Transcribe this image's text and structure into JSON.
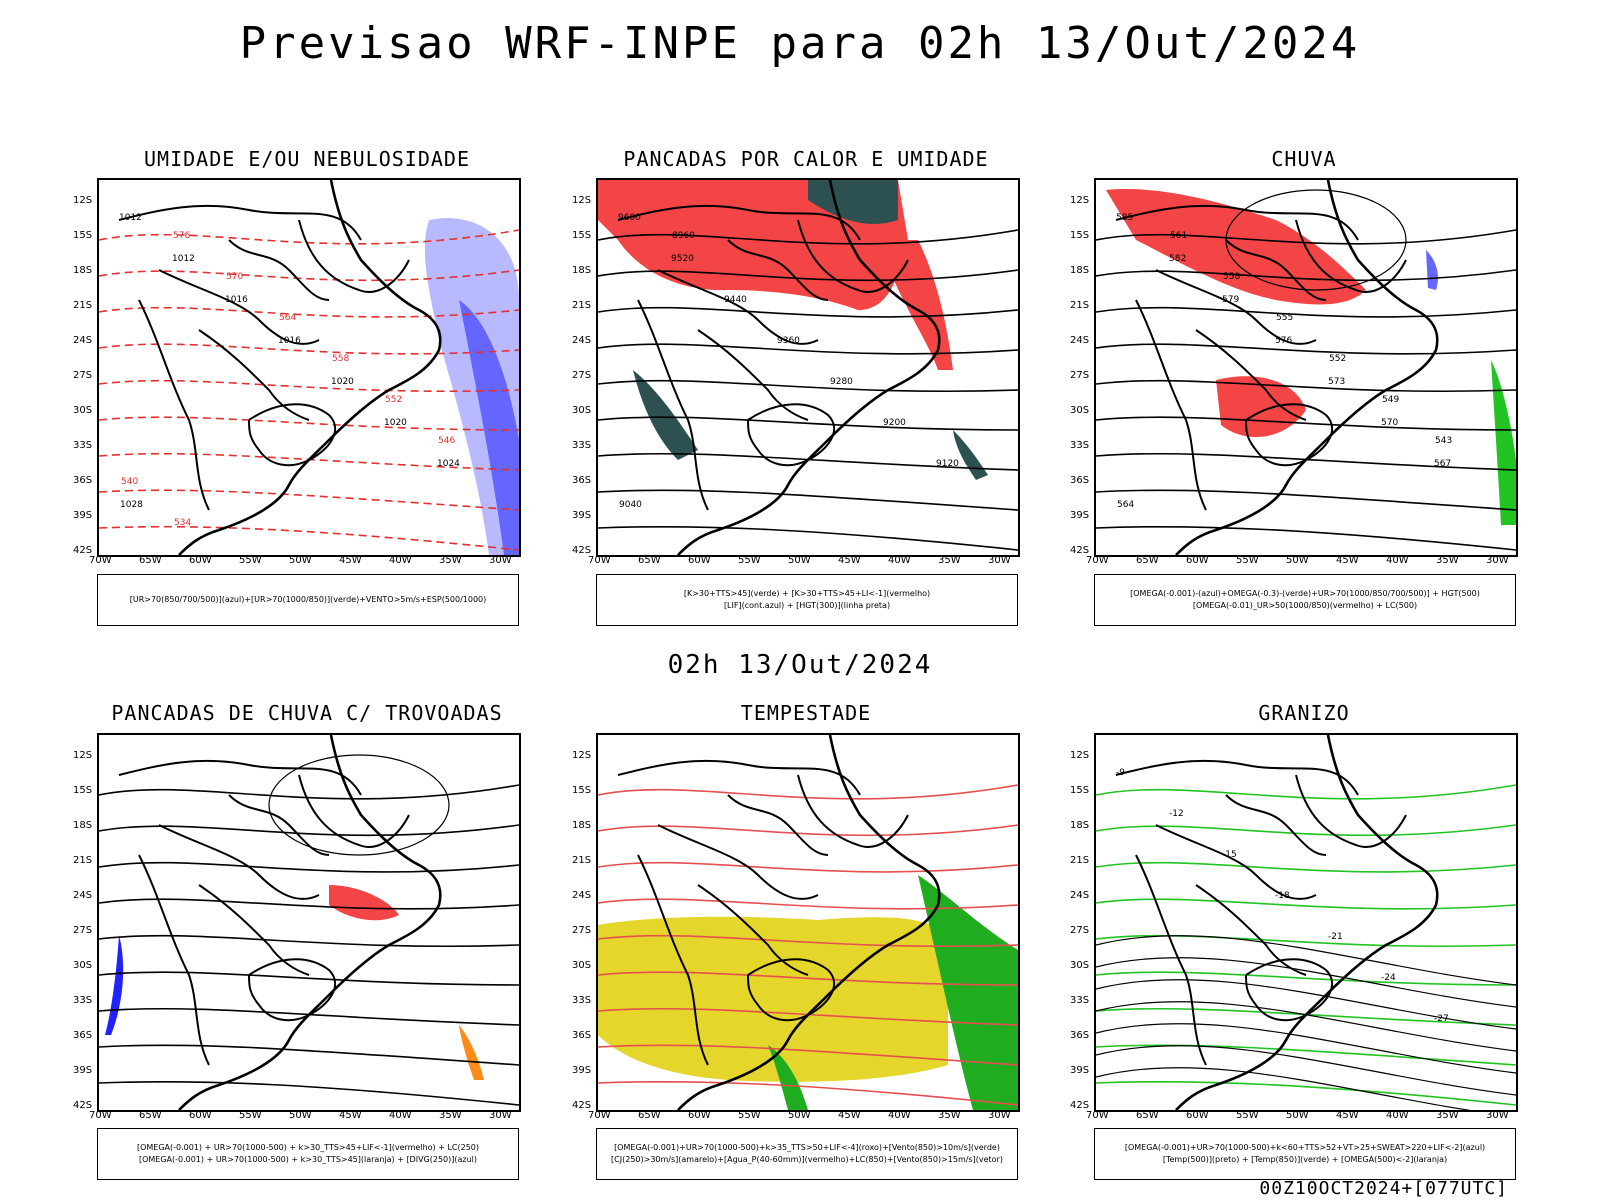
{
  "title": "Previsao WRF-INPE  para 02h 13/Out/2024",
  "subtitle": "02h 13/Out/2024",
  "footer": "00Z10OCT2024+[077UTC]",
  "lat_labels": [
    "12S",
    "15S",
    "18S",
    "21S",
    "24S",
    "27S",
    "30S",
    "33S",
    "36S",
    "39S",
    "42S"
  ],
  "lon_labels": [
    "70W",
    "65W",
    "60W",
    "55W",
    "50W",
    "45W",
    "40W",
    "35W",
    "30W"
  ],
  "panels": [
    {
      "title": "UMIDADE E/OU NEBULOSIDADE",
      "legend": [
        "[UR>70(850/700/500)](azul)+[UR>70(1000/850)](verde)+VENTO>5m/s+ESP(500/1000)"
      ],
      "contour_labels": [
        "1012",
        "1012",
        "1016",
        "1016",
        "1020",
        "1020",
        "1024",
        "1028",
        "576",
        "570",
        "564",
        "558",
        "552",
        "546",
        "540",
        "534"
      ]
    },
    {
      "title": "PANCADAS POR CALOR E UMIDADE",
      "legend": [
        "[K>30+TTS>45](verde) + [K>30+TTS>45+LI<-1](vermelho)",
        "[LIF](cont.azul) + [HGT(300)](linha preta)"
      ],
      "contour_labels": [
        "9600",
        "9520",
        "9440",
        "9360",
        "9280",
        "9200",
        "9120",
        "9040",
        "8960"
      ]
    },
    {
      "title": "CHUVA",
      "legend": [
        "[OMEGA(-0.001)-(azul)+OMEGA(-0.3)-(verde)+UR>70(1000/850/700/500)] + HGT(500)",
        "[OMEGA(-0.01)_UR>50(1000/850)(vermelho) + LC(500)"
      ],
      "contour_labels": [
        "585",
        "582",
        "579",
        "576",
        "573",
        "570",
        "567",
        "564",
        "561",
        "558",
        "555",
        "552",
        "549",
        "543"
      ]
    },
    {
      "title": "PANCADAS DE CHUVA C/ TROVOADAS",
      "legend": [
        "[OMEGA(-0.001) + UR>70(1000-500) + k>30_TTS>45+LIF<-1](vermelho) + LC(250)",
        "[OMEGA(-0.001) + UR>70(1000-500) + k>30_TTS>45](laranja) + [DIVG(250)](azul)"
      ],
      "contour_labels": []
    },
    {
      "title": "TEMPESTADE",
      "legend": [
        "[OMEGA(-0.001)+UR>70(1000-500)+k>35_TTS>50+LIF<-4](roxo)+[Vento(850)>10m/s](verde)",
        "[CJ(250)>30m/s](amarelo)+[Agua_P(40-60mm)](vermelho)+LC(850)+[Vento(850)>15m/s](vetor)"
      ],
      "contour_labels": []
    },
    {
      "title": "GRANIZO",
      "legend": [
        "[OMEGA(-0.001)+UR>70(1000-500)+k<60+TTS>52+VT>25+SWEAT>220+LIF<-2](azul)",
        "[Temp(500)](preto) + [Temp(850)](verde) + [OMEGA(500)<-2](laranja)"
      ],
      "contour_labels": [
        "-9",
        "-12",
        "-15",
        "-18",
        "-21",
        "-24",
        "-27"
      ]
    }
  ]
}
